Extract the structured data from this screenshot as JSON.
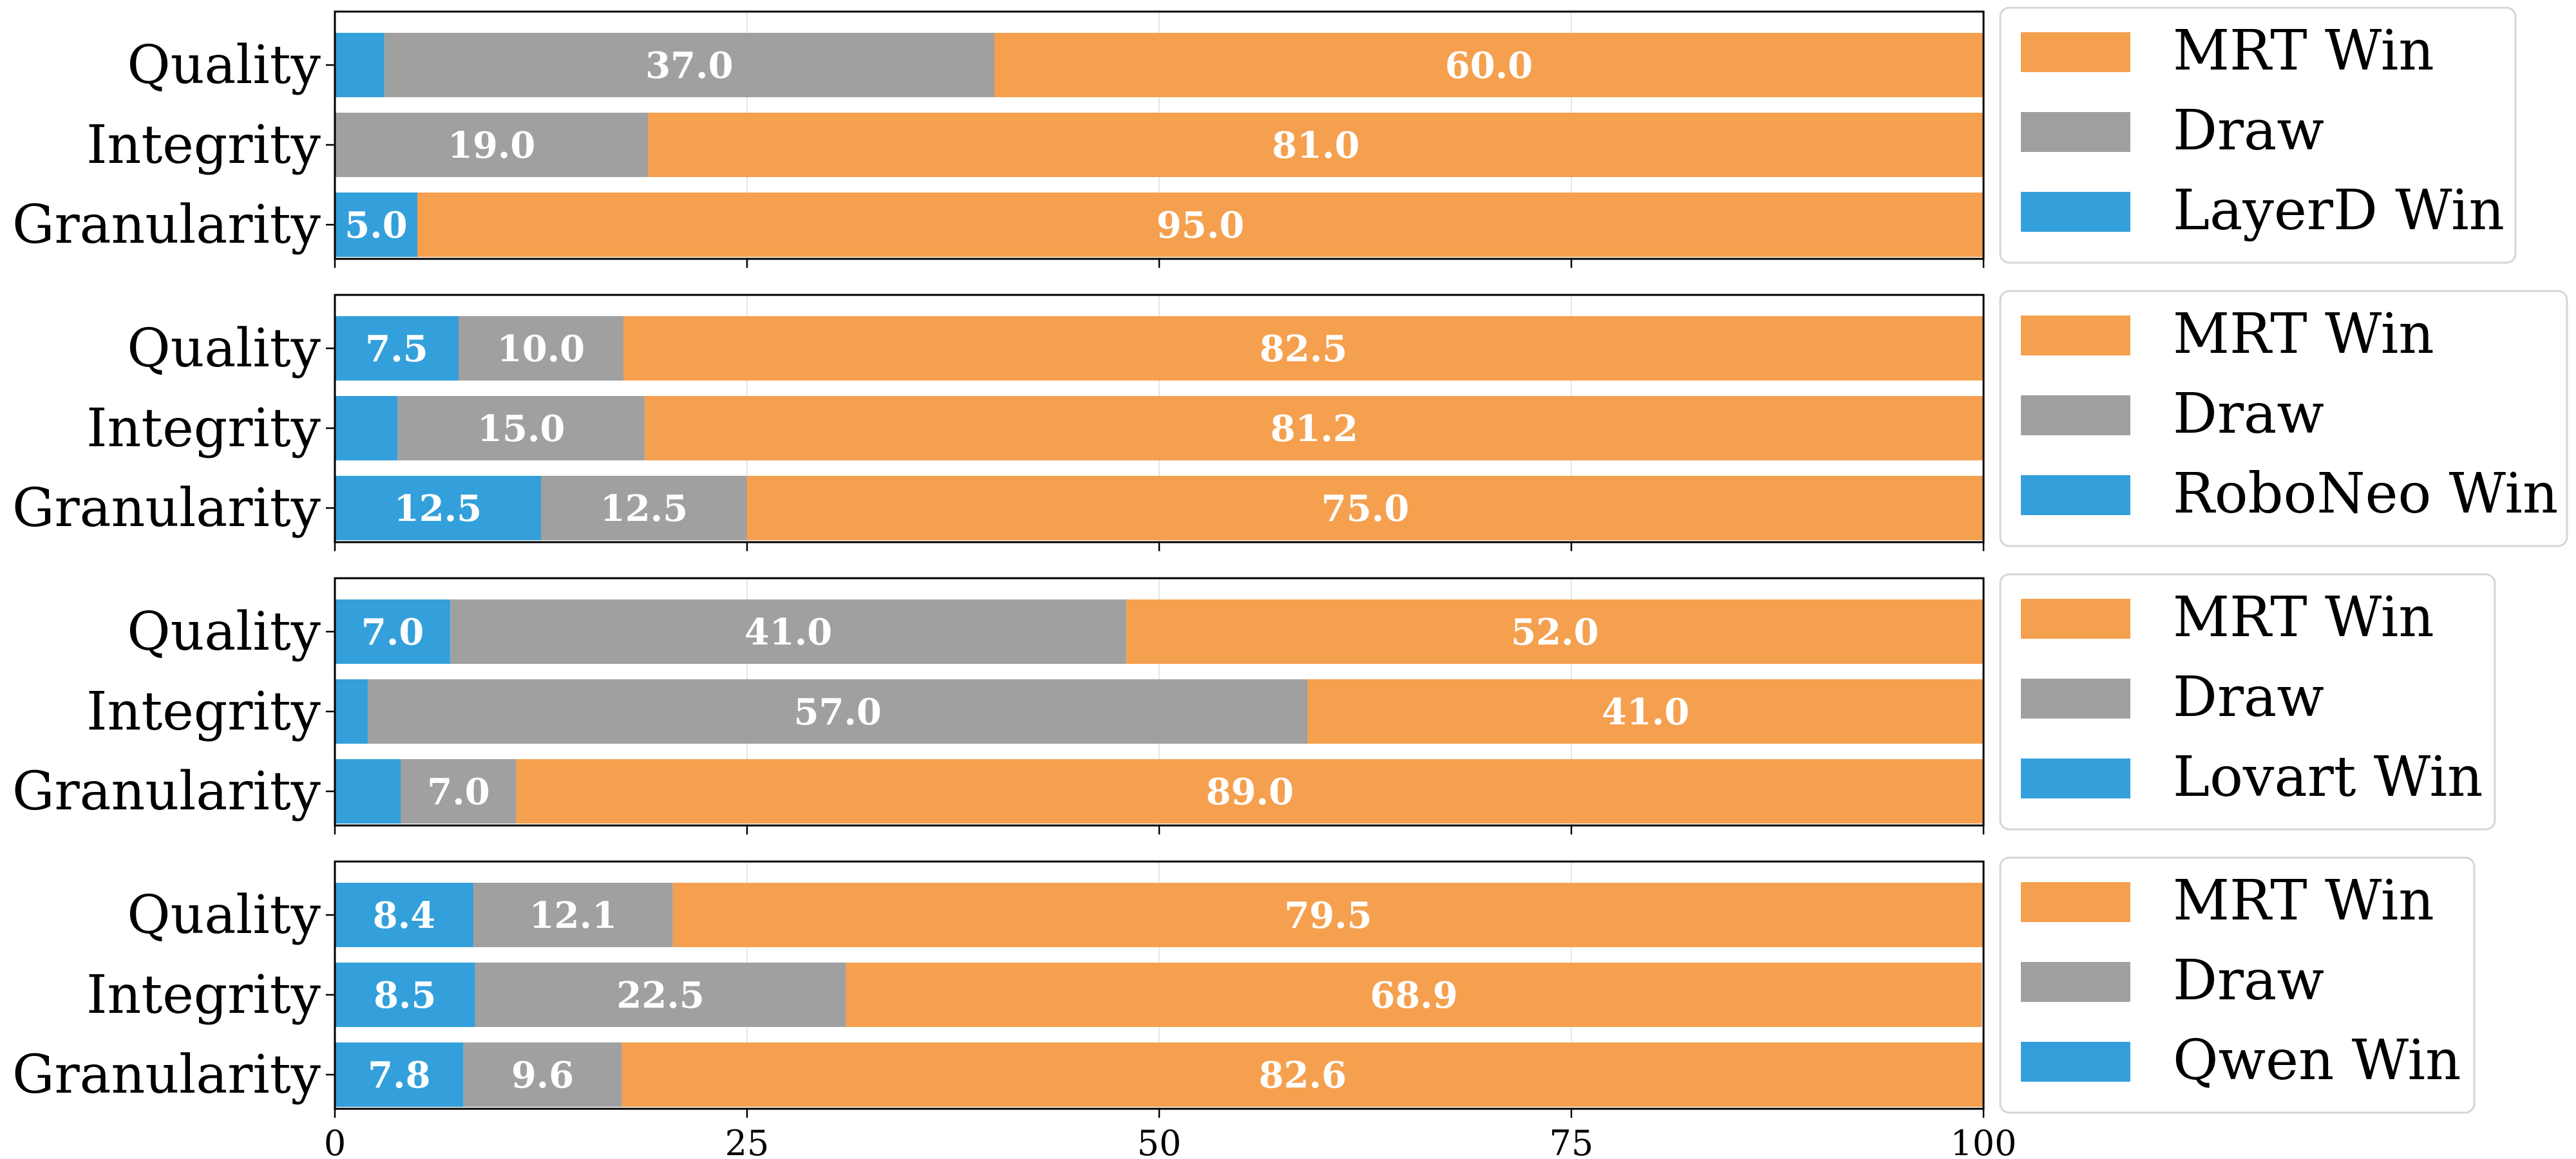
{
  "colors": {
    "MRT Win": "#f5a04f",
    "Draw": "#a0a0a0",
    "Competitor Win": "#33a0db"
  },
  "chart_data": [
    {
      "type": "bar",
      "orientation": "horizontal",
      "stacked": true,
      "categories": [
        "Quality",
        "Integrity",
        "Granularity"
      ],
      "series": [
        {
          "name": "LayerD Win",
          "values": [
            3.0,
            0.0,
            5.0
          ],
          "labels": [
            "",
            "",
            "5.0"
          ]
        },
        {
          "name": "Draw",
          "values": [
            37.0,
            19.0,
            0.0
          ],
          "labels": [
            "37.0",
            "19.0",
            ""
          ]
        },
        {
          "name": "MRT Win",
          "values": [
            60.0,
            81.0,
            95.0
          ],
          "labels": [
            "60.0",
            "81.0",
            "95.0"
          ]
        }
      ],
      "legend": [
        "MRT Win",
        "Draw",
        "LayerD Win"
      ],
      "xlim": [
        0,
        100
      ]
    },
    {
      "type": "bar",
      "orientation": "horizontal",
      "stacked": true,
      "categories": [
        "Quality",
        "Integrity",
        "Granularity"
      ],
      "series": [
        {
          "name": "RoboNeo Win",
          "values": [
            7.5,
            3.8,
            12.5
          ],
          "labels": [
            "7.5",
            "",
            "12.5"
          ]
        },
        {
          "name": "Draw",
          "values": [
            10.0,
            15.0,
            12.5
          ],
          "labels": [
            "10.0",
            "15.0",
            "12.5"
          ]
        },
        {
          "name": "MRT Win",
          "values": [
            82.5,
            81.2,
            75.0
          ],
          "labels": [
            "82.5",
            "81.2",
            "75.0"
          ]
        }
      ],
      "legend": [
        "MRT Win",
        "Draw",
        "RoboNeo Win"
      ],
      "xlim": [
        0,
        100
      ]
    },
    {
      "type": "bar",
      "orientation": "horizontal",
      "stacked": true,
      "categories": [
        "Quality",
        "Integrity",
        "Granularity"
      ],
      "series": [
        {
          "name": "Lovart Win",
          "values": [
            7.0,
            2.0,
            4.0
          ],
          "labels": [
            "7.0",
            "",
            ""
          ]
        },
        {
          "name": "Draw",
          "values": [
            41.0,
            57.0,
            7.0
          ],
          "labels": [
            "41.0",
            "57.0",
            "7.0"
          ]
        },
        {
          "name": "MRT Win",
          "values": [
            52.0,
            41.0,
            89.0
          ],
          "labels": [
            "52.0",
            "41.0",
            "89.0"
          ]
        }
      ],
      "legend": [
        "MRT Win",
        "Draw",
        "Lovart Win"
      ],
      "xlim": [
        0,
        100
      ]
    },
    {
      "type": "bar",
      "orientation": "horizontal",
      "stacked": true,
      "categories": [
        "Quality",
        "Integrity",
        "Granularity"
      ],
      "series": [
        {
          "name": "Qwen Win",
          "values": [
            8.4,
            8.5,
            7.8
          ],
          "labels": [
            "8.4",
            "8.5",
            "7.8"
          ]
        },
        {
          "name": "Draw",
          "values": [
            12.1,
            22.5,
            9.6
          ],
          "labels": [
            "12.1",
            "22.5",
            "9.6"
          ]
        },
        {
          "name": "MRT Win",
          "values": [
            79.5,
            68.9,
            82.6
          ],
          "labels": [
            "79.5",
            "68.9",
            "82.6"
          ]
        }
      ],
      "legend": [
        "MRT Win",
        "Draw",
        "Qwen Win"
      ],
      "xlim": [
        0,
        100
      ]
    }
  ],
  "x_ticks": [
    "0",
    "25",
    "50",
    "75",
    "100"
  ]
}
